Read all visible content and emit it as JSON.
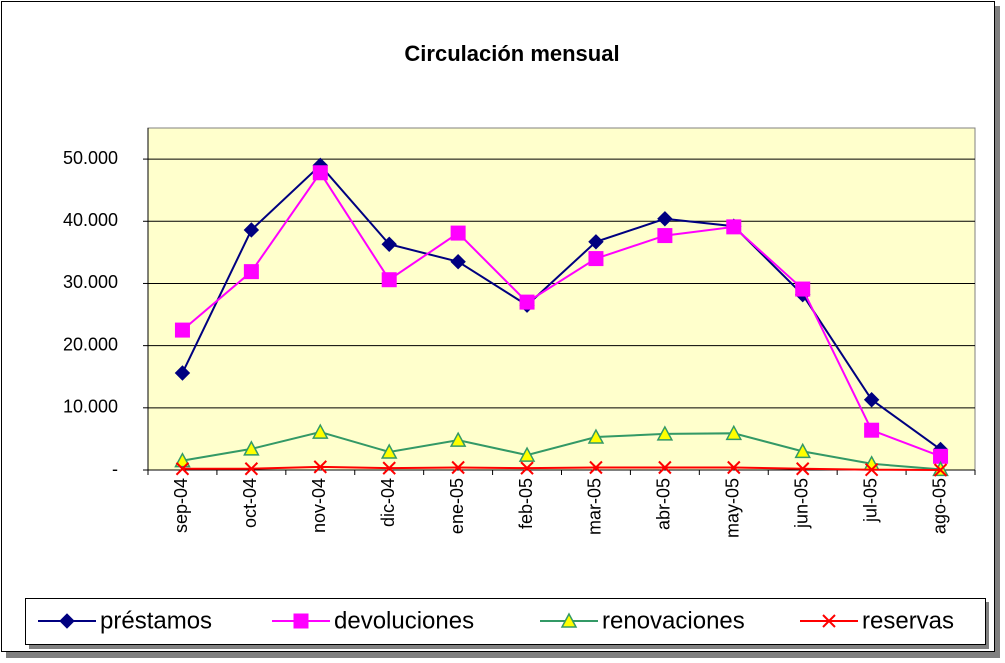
{
  "chart_data": {
    "type": "line",
    "title": "Circulación mensual",
    "categories": [
      "sep-04",
      "oct-04",
      "nov-04",
      "dic-04",
      "ene-05",
      "feb-05",
      "mar-05",
      "abr-05",
      "may-05",
      "jun-05",
      "jul-05",
      "ago-05"
    ],
    "series": [
      {
        "name": "préstamos",
        "color": "#000080",
        "marker": "diamond",
        "values": [
          15600,
          38600,
          49000,
          36300,
          33500,
          26500,
          36700,
          40400,
          39200,
          28200,
          11300,
          3300
        ]
      },
      {
        "name": "devoluciones",
        "color": "#FF00FF",
        "marker": "square",
        "values": [
          22500,
          31900,
          47800,
          30600,
          38100,
          27000,
          34000,
          37700,
          39100,
          29100,
          6400,
          2200
        ]
      },
      {
        "name": "renovaciones",
        "color": "#339966",
        "marker": "triangle",
        "values": [
          1500,
          3400,
          6100,
          2900,
          4800,
          2400,
          5300,
          5800,
          5900,
          3000,
          1000,
          100
        ]
      },
      {
        "name": "reservas",
        "color": "#FF0000",
        "marker": "x",
        "values": [
          200,
          200,
          500,
          300,
          400,
          300,
          400,
          400,
          400,
          200,
          50,
          0
        ]
      }
    ],
    "ylim": [
      0,
      55000
    ],
    "yticks": [
      {
        "value": 0,
        "label": "-"
      },
      {
        "value": 10000,
        "label": "10.000"
      },
      {
        "value": 20000,
        "label": "20.000"
      },
      {
        "value": 30000,
        "label": "30.000"
      },
      {
        "value": 40000,
        "label": "40.000"
      },
      {
        "value": 50000,
        "label": "50.000"
      }
    ],
    "grid": true,
    "legend": "bottom",
    "plot_background": "#FFFFCC"
  }
}
